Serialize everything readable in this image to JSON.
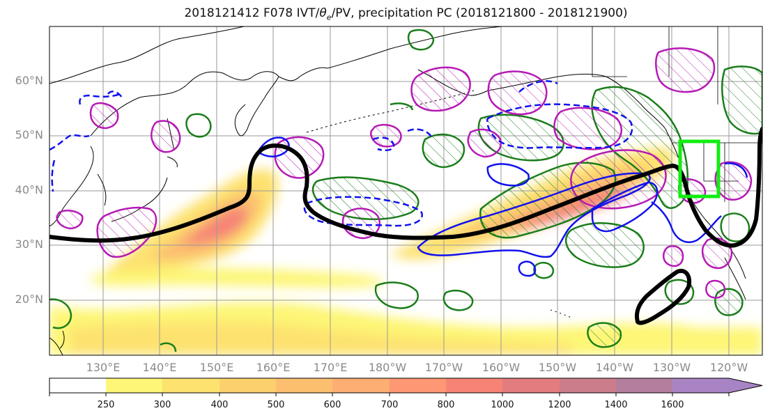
{
  "title": {
    "pre": "2018121412 F078 IVT/",
    "theta": "θ",
    "sub": "e",
    "post": "/PV, precipitation PC (2018121800 - 2018121900)"
  },
  "lat_labels": [
    "60°N",
    "50°N",
    "40°N",
    "30°N",
    "20°N"
  ],
  "lon_labels": [
    "130°E",
    "140°E",
    "150°E",
    "160°E",
    "170°E",
    "180°W",
    "170°W",
    "160°W",
    "150°W",
    "140°W",
    "130°W",
    "120°W"
  ],
  "colorbar": {
    "ticks": [
      "250",
      "300",
      "400",
      "500",
      "600",
      "700",
      "800",
      "1000",
      "1200",
      "1400",
      "1600"
    ],
    "colors": [
      "#ffffff",
      "#fdf676",
      "#fde26f",
      "#fcd06c",
      "#fcbf70",
      "#fdae72",
      "#fd9774",
      "#f58476",
      "#e27c7e",
      "#cb7d8c",
      "#b47f9f",
      "#a884c4"
    ]
  },
  "legend_colors": {
    "pv_contour": "#000000",
    "precip_positive": "#1a7d1a",
    "precip_negative": "#b51ab5",
    "theta_e_contour": "#1111ee",
    "target_box": "#11ee11"
  }
}
